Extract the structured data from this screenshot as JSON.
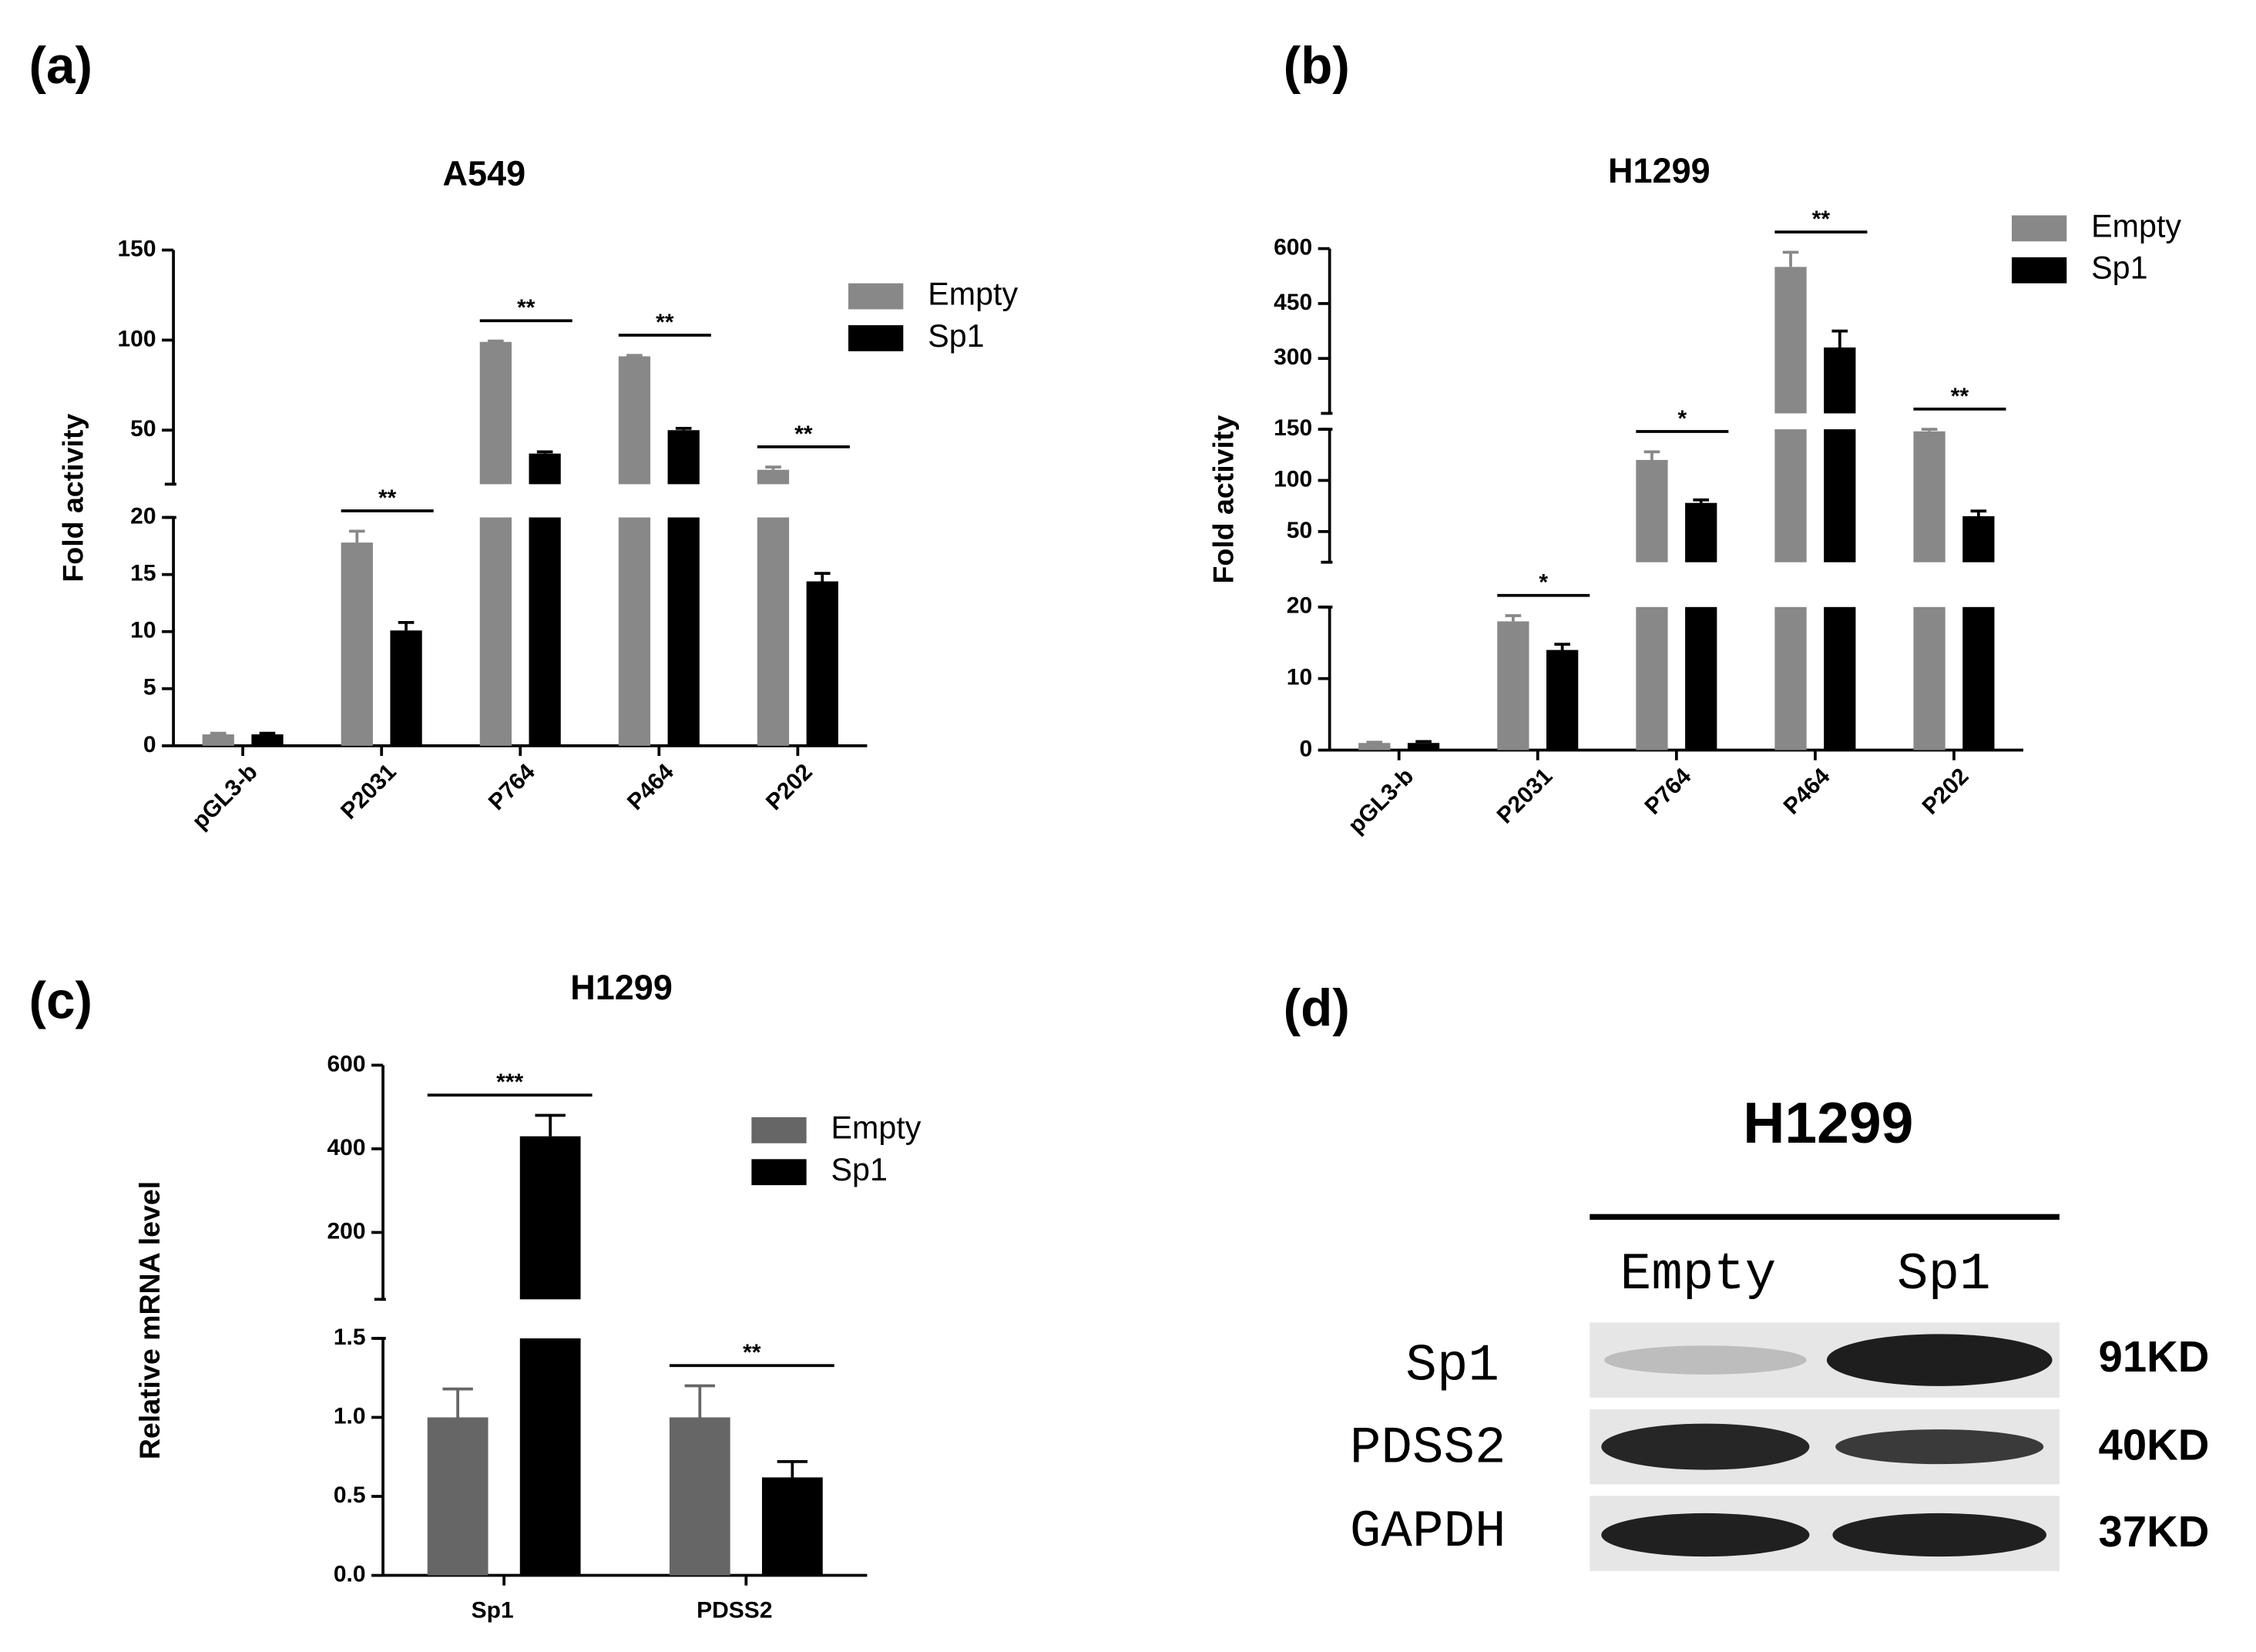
{
  "chart_data": [
    {
      "type": "bar",
      "panel": "(a)",
      "title": "A549",
      "ylabel": "Fold activity",
      "categories": [
        "pGL3-b",
        "P2031",
        "P764",
        "P464",
        "P202"
      ],
      "segments": [
        {
          "ylim": [
            0,
            20
          ],
          "yticks": [
            0,
            5,
            10,
            15,
            20
          ]
        },
        {
          "ylim": [
            20,
            150
          ],
          "yticks": [
            50,
            100,
            150
          ]
        }
      ],
      "series": [
        {
          "name": "Empty",
          "color": "#888888",
          "values": [
            1,
            17.8,
            99,
            91,
            28
          ],
          "errors": [
            0.1,
            1.0,
            0.5,
            0.5,
            1.5
          ]
        },
        {
          "name": "Sp1",
          "color": "#000000",
          "values": [
            1,
            10.1,
            37,
            50,
            14.4
          ],
          "errors": [
            0.1,
            0.7,
            1,
            1,
            0.7
          ]
        }
      ],
      "significance": [
        null,
        "**",
        "**",
        "**",
        "**"
      ]
    },
    {
      "type": "bar",
      "panel": "(b)",
      "title": "H1299",
      "ylabel": "Fold activity",
      "categories": [
        "pGL3-b",
        "P2031",
        "P764",
        "P464",
        "P202"
      ],
      "segments": [
        {
          "ylim": [
            0,
            20
          ],
          "yticks": [
            0,
            10,
            20
          ]
        },
        {
          "ylim": [
            20,
            150
          ],
          "yticks": [
            50,
            100,
            150
          ]
        },
        {
          "ylim": [
            150,
            600
          ],
          "yticks": [
            300,
            450,
            600
          ]
        }
      ],
      "series": [
        {
          "name": "Empty",
          "color": "#888888",
          "values": [
            1,
            18,
            120,
            550,
            148
          ],
          "errors": [
            0.1,
            0.8,
            8,
            40,
            2
          ]
        },
        {
          "name": "Sp1",
          "color": "#000000",
          "values": [
            1,
            14,
            78,
            330,
            65
          ],
          "errors": [
            0.2,
            0.8,
            3,
            45,
            5
          ]
        }
      ],
      "significance": [
        null,
        "*",
        "*",
        "**",
        "**"
      ]
    },
    {
      "type": "bar",
      "panel": "(c)",
      "title": "H1299",
      "ylabel": "Relative mRNA level",
      "categories": [
        "Sp1",
        "PDSS2"
      ],
      "segments": [
        {
          "ylim": [
            0,
            1.5
          ],
          "yticks": [
            {
              "value": 0,
              "label": "0.0"
            },
            0.5,
            {
              "value": 1,
              "label": "1.0"
            },
            1.5
          ]
        },
        {
          "ylim": [
            40,
            600
          ],
          "yticks": [
            200,
            400,
            600
          ]
        }
      ],
      "series": [
        {
          "name": "Empty",
          "color": "#666666",
          "values": [
            1.0,
            1.0
          ],
          "errors": [
            0.18,
            0.2
          ]
        },
        {
          "name": "Sp1",
          "color": "#000000",
          "values": [
            430,
            0.62
          ],
          "errors": [
            50,
            0.1
          ]
        }
      ],
      "significance": [
        "***",
        "**"
      ]
    }
  ],
  "blot": {
    "panel": "(d)",
    "title": "H1299",
    "lanes": [
      "Empty",
      "Sp1"
    ],
    "rows": [
      {
        "protein": "Sp1",
        "size": "91KD"
      },
      {
        "protein": "PDSS2",
        "size": "40KD"
      },
      {
        "protein": "GAPDH",
        "size": "37KD"
      }
    ]
  }
}
